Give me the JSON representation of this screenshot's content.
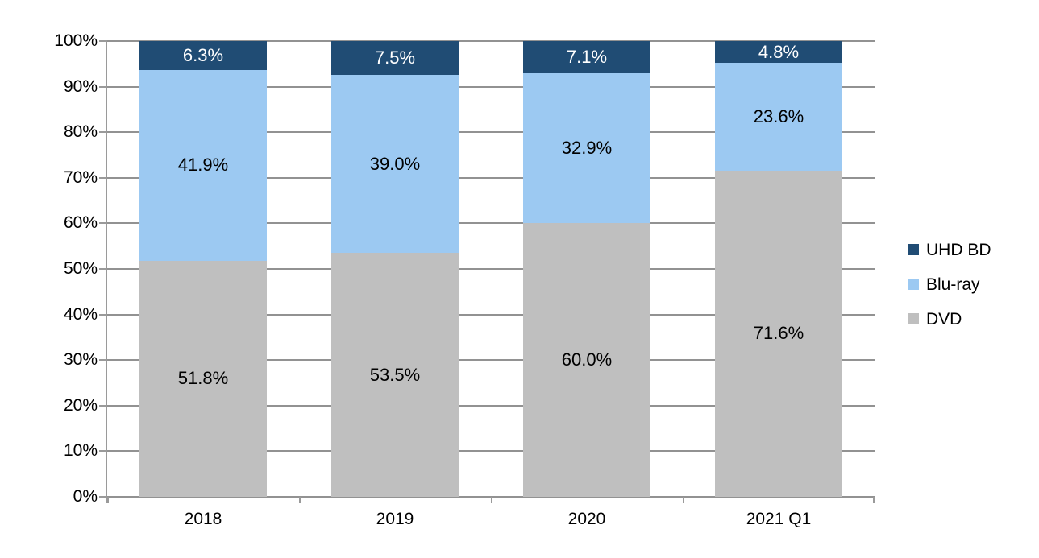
{
  "chart_data": {
    "type": "bar",
    "stacking": "percent",
    "orientation": "vertical",
    "title": "",
    "xlabel": "",
    "ylabel": "",
    "grid": true,
    "categories": [
      "2018",
      "2019",
      "2020",
      "2021 Q1"
    ],
    "series": [
      {
        "name": "DVD",
        "color": "#BFBFBF",
        "label_text_color": "#000000",
        "values": [
          51.8,
          53.5,
          60.0,
          71.6
        ]
      },
      {
        "name": "Blu-ray",
        "color": "#9CC9F2",
        "label_text_color": "#000000",
        "values": [
          41.9,
          39.0,
          32.9,
          23.6
        ]
      },
      {
        "name": "UHD BD",
        "color": "#204C74",
        "label_text_color": "#FFFFFF",
        "values": [
          6.3,
          7.5,
          7.1,
          4.8
        ]
      }
    ],
    "data_labels": {
      "2018": {
        "DVD": "51.8%",
        "Blu-ray": "41.9%",
        "UHD BD": "6.3%"
      },
      "2019": {
        "DVD": "53.5%",
        "Blu-ray": "39.0%",
        "UHD BD": "7.5%"
      },
      "2020": {
        "DVD": "60.0%",
        "Blu-ray": "32.9%",
        "UHD BD": "7.1%"
      },
      "2021 Q1": {
        "DVD": "71.6%",
        "Blu-ray": "23.6%",
        "UHD BD": "4.8%"
      }
    },
    "y_axis": {
      "min": 0,
      "max": 100,
      "step": 10,
      "tick_labels": [
        "0%",
        "10%",
        "20%",
        "30%",
        "40%",
        "50%",
        "60%",
        "70%",
        "80%",
        "90%",
        "100%"
      ]
    },
    "legend": {
      "position": "right",
      "entries": [
        "UHD BD",
        "Blu-ray",
        "DVD"
      ]
    }
  },
  "style": {
    "axis_color": "#9A9A9A",
    "gridline_color": "#929292",
    "text_color": "#000000",
    "background": "#FFFFFF"
  }
}
